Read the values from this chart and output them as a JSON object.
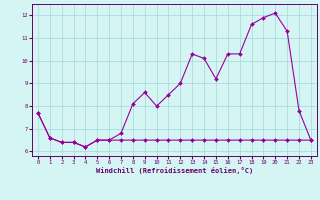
{
  "x": [
    0,
    1,
    2,
    3,
    4,
    5,
    6,
    7,
    8,
    9,
    10,
    11,
    12,
    13,
    14,
    15,
    16,
    17,
    18,
    19,
    20,
    21,
    22,
    23
  ],
  "temp": [
    7.7,
    6.6,
    6.4,
    6.4,
    6.2,
    6.5,
    6.5,
    6.8,
    8.1,
    8.6,
    8.0,
    8.5,
    9.0,
    10.3,
    10.1,
    9.2,
    10.3,
    10.3,
    11.6,
    11.9,
    12.1,
    11.3,
    7.8,
    6.5
  ],
  "wc_flat": [
    7.7,
    6.6,
    6.4,
    6.4,
    6.2,
    6.5,
    6.5,
    6.5,
    6.5,
    6.5,
    6.5,
    6.5,
    6.5,
    6.5,
    6.5,
    6.5,
    6.5,
    6.5,
    6.5,
    6.5,
    6.5,
    6.5,
    6.5,
    6.5
  ],
  "line_color": "#990099",
  "bg_color": "#d5f5f5",
  "grid_color": "#aadddd",
  "xlabel": "Windchill (Refroidissement éolien,°C)",
  "ylim": [
    5.8,
    12.5
  ],
  "xlim": [
    -0.5,
    23.5
  ],
  "yticks": [
    6,
    7,
    8,
    9,
    10,
    11,
    12
  ],
  "xticks": [
    0,
    1,
    2,
    3,
    4,
    5,
    6,
    7,
    8,
    9,
    10,
    11,
    12,
    13,
    14,
    15,
    16,
    17,
    18,
    19,
    20,
    21,
    22,
    23
  ]
}
